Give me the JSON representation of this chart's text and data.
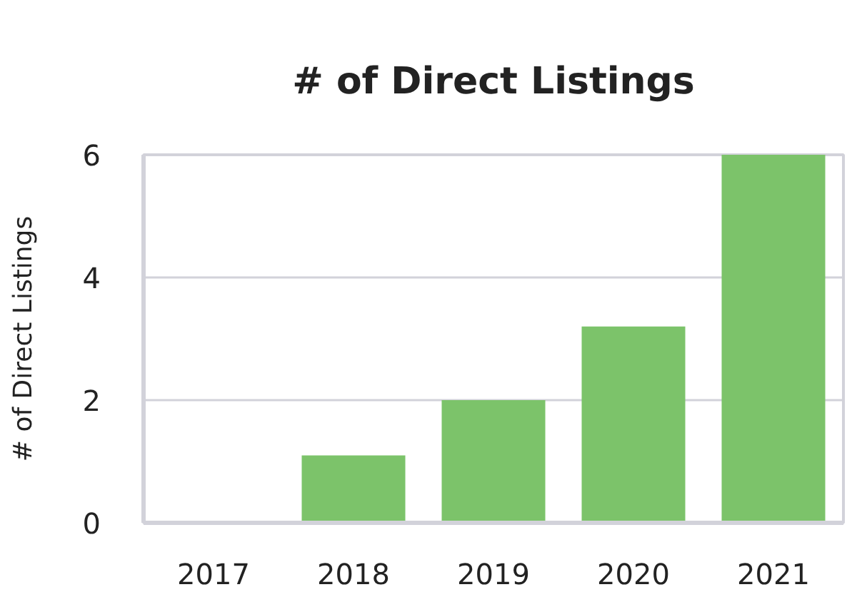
{
  "chart_data": {
    "type": "bar",
    "title": "# of Direct Listings",
    "ylabel": "# of Direct Listings",
    "categories": [
      "2017",
      "2018",
      "2019",
      "2020",
      "2021"
    ],
    "values": [
      0,
      1.1,
      2,
      3.2,
      6
    ],
    "color": "#7cc36a",
    "ylim": [
      0,
      6
    ],
    "yticks": [
      0,
      2,
      4,
      6
    ],
    "grid": "y"
  }
}
